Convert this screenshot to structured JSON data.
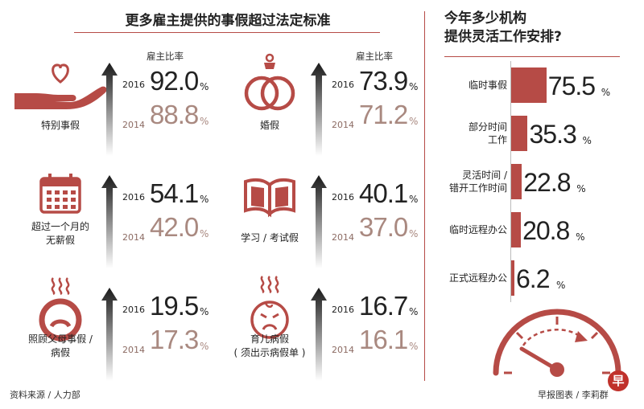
{
  "left_title": "更多雇主提供的事假超过法定标准",
  "right_title_line1": "今年多少机构",
  "right_title_line2": "提供灵活工作安排?",
  "head_label": "雇主比率",
  "pct_sign": "%",
  "year_new": "2016",
  "year_old": "2014",
  "colors": {
    "accent": "#b64b46",
    "dark": "#222222",
    "light": "#a98980"
  },
  "chart_data": [
    {
      "type": "table",
      "title": "更多雇主提供的事假超过法定标准",
      "columns": [
        "2016",
        "2014"
      ],
      "value_label": "雇主比率",
      "unit": "%",
      "rows": [
        {
          "label_line1": "特别事假",
          "label_line2": "",
          "icon": "hand-heart-icon",
          "v2016": "92.0",
          "v2014": "88.8",
          "show_head": true
        },
        {
          "label_line1": "婚假",
          "label_line2": "",
          "icon": "wedding-rings-icon",
          "v2016": "73.9",
          "v2014": "71.2",
          "show_head": true
        },
        {
          "label_line1": "超过一个月的",
          "label_line2": "无薪假",
          "icon": "calendar-icon",
          "v2016": "54.1",
          "v2014": "42.0",
          "show_head": false
        },
        {
          "label_line1": "学习 / 考试假",
          "label_line2": "",
          "icon": "open-book-icon",
          "v2016": "40.1",
          "v2014": "37.0",
          "show_head": false
        },
        {
          "label_line1": "照顾父母事假 /",
          "label_line2": "病假",
          "icon": "sick-face-icon",
          "v2016": "19.5",
          "v2014": "17.3",
          "show_head": false
        },
        {
          "label_line1": "育儿病假",
          "label_line2": "( 须出示病假单 )",
          "icon": "sick-baby-icon",
          "v2016": "16.7",
          "v2014": "16.1",
          "show_head": false
        }
      ]
    },
    {
      "type": "bar",
      "orientation": "horizontal",
      "title": "今年多少机构提供灵活工作安排?",
      "unit": "%",
      "xlim": [
        0,
        100
      ],
      "categories": [
        {
          "line1": "临时事假",
          "line2": ""
        },
        {
          "line1": "部分时间",
          "line2": "工作"
        },
        {
          "line1": "灵活时间 /",
          "line2": "错开工作时间"
        },
        {
          "line1": "临时远程办公",
          "line2": ""
        },
        {
          "line1": "正式远程办公",
          "line2": ""
        }
      ],
      "values": [
        75.5,
        35.3,
        22.8,
        20.8,
        6.2
      ],
      "value_labels": [
        "75.5",
        "35.3",
        "22.8",
        "20.8",
        "6.2"
      ]
    }
  ],
  "footer": {
    "source": "资料来源 / 人力部",
    "credit": "早报图表 / 李莉群"
  },
  "logo_text": "早"
}
